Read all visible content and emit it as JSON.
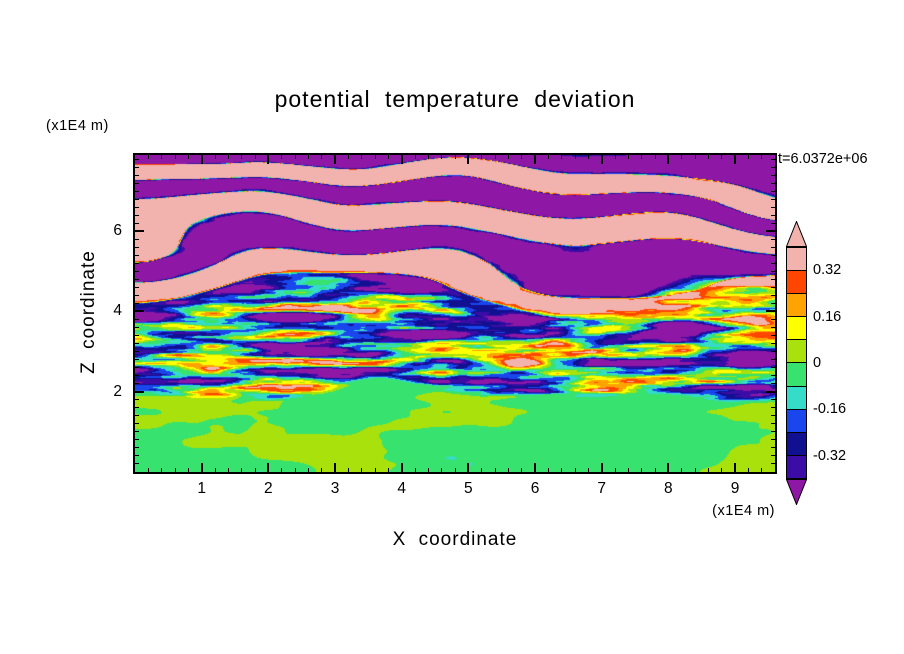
{
  "title": "potential temperature deviation",
  "annotations": {
    "time_label": "t=6.0372e+06",
    "y_unit_label": "(x1E4 m)",
    "x_unit_label": "(x1E4 m)"
  },
  "axes": {
    "x_label": "X coordinate",
    "y_label": "Z coordinate",
    "x_ticks": [
      1,
      2,
      3,
      4,
      5,
      6,
      7,
      8,
      9
    ],
    "y_ticks": [
      2,
      4,
      6
    ],
    "x_range": [
      0,
      9.6
    ],
    "z_range": [
      0,
      7.9
    ],
    "minor_tick_step": 0.2
  },
  "colorbar": {
    "tick_labels": [
      "0.32",
      "0.16",
      "0",
      "-0.16",
      "-0.32"
    ],
    "levels": [
      -0.4,
      -0.32,
      -0.24,
      -0.16,
      -0.08,
      0,
      0.08,
      0.16,
      0.24,
      0.32,
      0.4
    ],
    "colors_low_to_high": [
      "#3c0ca6",
      "#101091",
      "#1a46ee",
      "#35dcc8",
      "#37e26e",
      "#a8e10c",
      "#ffff00",
      "#ffa300",
      "#ff4600",
      "#f2b3ae"
    ],
    "under_arrow_color": "#8e17a5",
    "over_arrow_color": "#f2b3ae"
  },
  "chart_data": {
    "type": "heatmap",
    "subtype": "filled_contour_turbulence_field",
    "title": "potential temperature deviation",
    "xlabel": "X coordinate (x1E4 m)",
    "ylabel": "Z coordinate (x1E4 m)",
    "time_annotation": "t=6.0372e+06",
    "x_range": [
      0,
      9.6
    ],
    "z_range": [
      0,
      7.9
    ],
    "contour_levels": [
      -0.4,
      -0.32,
      -0.24,
      -0.16,
      -0.08,
      0,
      0.08,
      0.16,
      0.24,
      0.32,
      0.4
    ],
    "colorbar_labels": [
      "0.32",
      "0.16",
      "0",
      "-0.16",
      "-0.32"
    ],
    "legend_position": "right",
    "grid": false,
    "seed": 7,
    "structure": {
      "bottom_layer": {
        "z_max": 2.0,
        "mean": -0.025,
        "amplitude": 0.06,
        "description": "well-mixed boundary layer below z=2: mostly green (-0.08..0) with elongated yellow-green (0..0.08) blobs"
      },
      "middle_layer": {
        "z_min": 2.0,
        "z_max": 5.0,
        "mean": -0.11,
        "amplitude": 0.38,
        "description": "turquoise background with thin horizontally elongated turbulent filaments spanning yellow/orange/red (positive) and blue/navy (negative)"
      },
      "top_layer": {
        "z_min": 5.0,
        "mean": 0.06,
        "amplitude": 0.85,
        "wave_vertical_wavelength": 1.15,
        "description": "large-amplitude gravity-wave layers alternating pink (>0.4) and purple (<-0.4) horizontal bands with thin red and navy edges"
      }
    }
  }
}
